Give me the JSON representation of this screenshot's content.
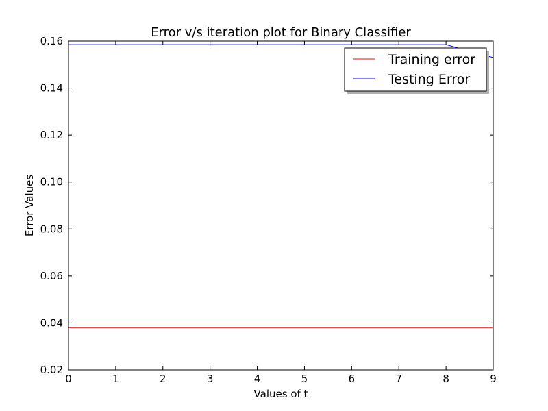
{
  "chart_data": {
    "type": "line",
    "title": "Error v/s iteration plot for Binary Classifier",
    "xlabel": "Values of t",
    "ylabel": "Error Values",
    "xlim": [
      0,
      9
    ],
    "ylim": [
      0.02,
      0.16
    ],
    "xticks": [
      {
        "value": 0,
        "label": "0"
      },
      {
        "value": 1,
        "label": "1"
      },
      {
        "value": 2,
        "label": "2"
      },
      {
        "value": 3,
        "label": "3"
      },
      {
        "value": 4,
        "label": "4"
      },
      {
        "value": 5,
        "label": "5"
      },
      {
        "value": 6,
        "label": "6"
      },
      {
        "value": 7,
        "label": "7"
      },
      {
        "value": 8,
        "label": "8"
      },
      {
        "value": 9,
        "label": "9"
      }
    ],
    "yticks": [
      {
        "value": 0.02,
        "label": "0.02"
      },
      {
        "value": 0.04,
        "label": "0.04"
      },
      {
        "value": 0.06,
        "label": "0.06"
      },
      {
        "value": 0.08,
        "label": "0.08"
      },
      {
        "value": 0.1,
        "label": "0.10"
      },
      {
        "value": 0.12,
        "label": "0.12"
      },
      {
        "value": 0.14,
        "label": "0.14"
      },
      {
        "value": 0.16,
        "label": "0.16"
      }
    ],
    "grid": false,
    "legend_position": "upper right",
    "series": [
      {
        "name": "Training error",
        "color": "#ff0000",
        "x": [
          0,
          1,
          2,
          3,
          4,
          5,
          6,
          7,
          8,
          9
        ],
        "y": [
          0.038,
          0.038,
          0.038,
          0.038,
          0.038,
          0.038,
          0.038,
          0.038,
          0.038,
          0.038
        ]
      },
      {
        "name": "Testing Error",
        "color": "#0000ff",
        "x": [
          0,
          1,
          2,
          3,
          4,
          5,
          6,
          7,
          8,
          9
        ],
        "y": [
          0.1585,
          0.1585,
          0.1585,
          0.1585,
          0.1585,
          0.1585,
          0.1585,
          0.1585,
          0.1585,
          0.153
        ]
      }
    ]
  }
}
